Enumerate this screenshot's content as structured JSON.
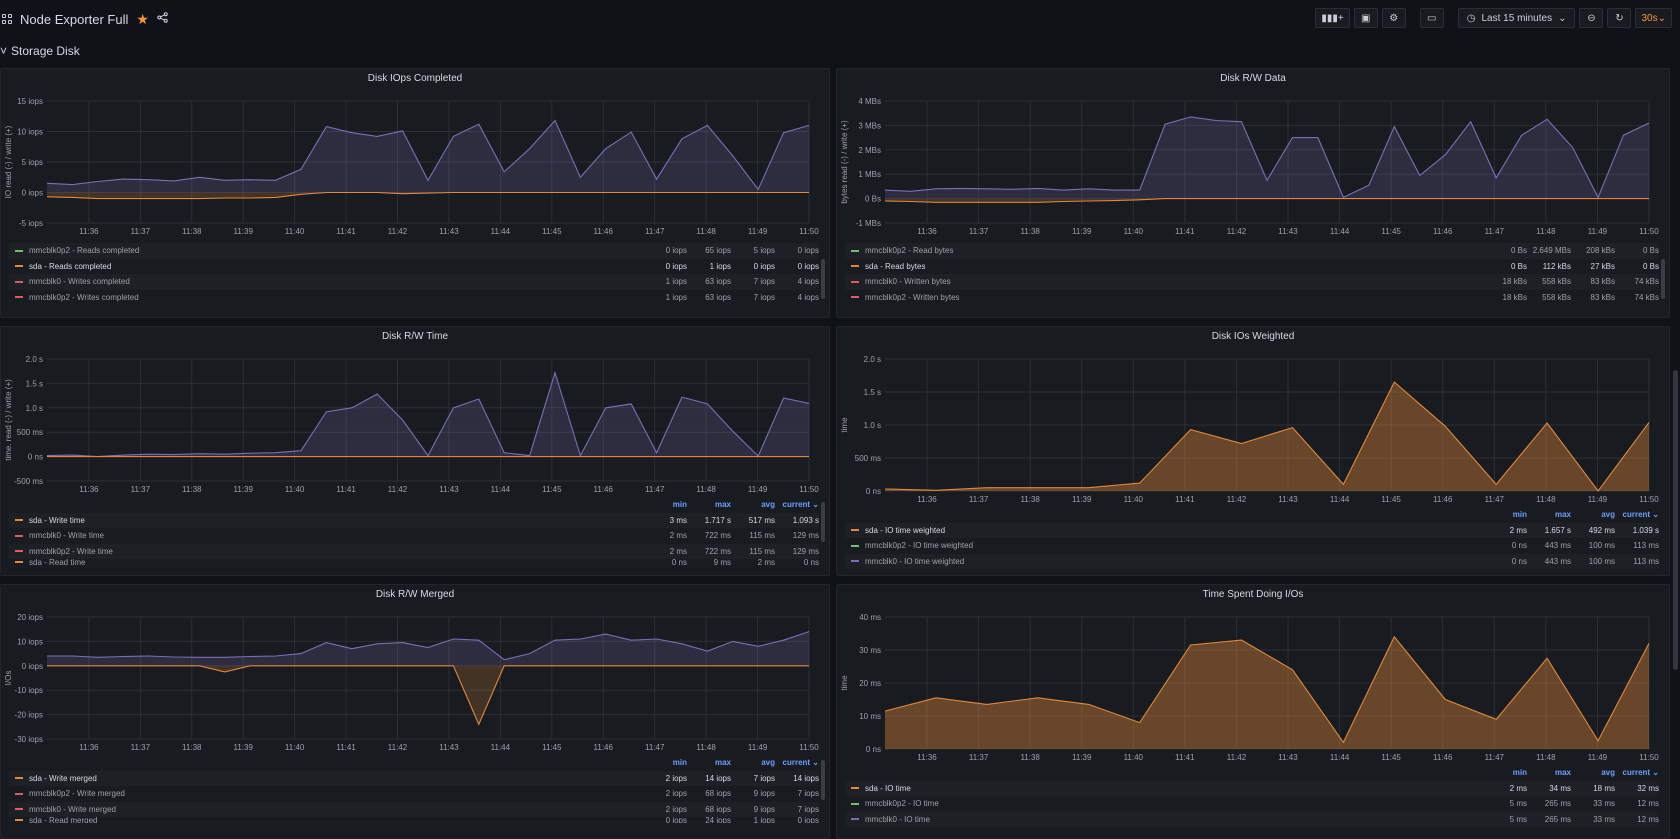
{
  "header": {
    "title": "Node Exporter Full",
    "time_range": "Last 15 minutes",
    "refresh_interval": "30s",
    "icons": [
      "apps-icon",
      "star-icon",
      "share-icon",
      "add-panel-icon",
      "save-icon",
      "settings-icon",
      "tv-mode-icon",
      "clock-icon",
      "zoom-out-icon",
      "refresh-icon"
    ]
  },
  "row": {
    "title": "Storage Disk"
  },
  "colors": {
    "purple": "#7b6fb3",
    "orange": "#e0883d",
    "red": "#e05b5b",
    "green": "#73bf69",
    "accent": "#6e9fff"
  },
  "chart_data": [
    {
      "id": "iops",
      "type": "area",
      "title": "Disk IOps Completed",
      "ylabel": "IO read (-) / write (+)",
      "yticks": [
        "15 iops",
        "10 iops",
        "5 iops",
        "0 iops",
        "-5 iops"
      ],
      "ylim": [
        -5,
        15
      ],
      "xticks": [
        "11:36",
        "11:37",
        "11:38",
        "11:39",
        "11:40",
        "11:41",
        "11:42",
        "11:43",
        "11:44",
        "11:45",
        "11:46",
        "11:47",
        "11:48",
        "11:49",
        "11:50"
      ],
      "series": [
        {
          "color": "purple",
          "values": [
            1.5,
            1.3,
            1.8,
            2.2,
            2.1,
            1.9,
            2.5,
            2.0,
            2.1,
            2.0,
            3.8,
            10.8,
            9.8,
            9.2,
            10.1,
            2.0,
            9.2,
            11.2,
            3.4,
            7.2,
            11.8,
            2.5,
            7.2,
            9.9,
            2.2,
            8.8,
            11.0,
            6.0,
            0.5,
            9.8,
            11.0
          ]
        },
        {
          "color": "orange",
          "values": [
            -0.7,
            -0.8,
            -1.0,
            -1.0,
            -1.0,
            -1.0,
            -1.0,
            -0.9,
            -0.9,
            -0.8,
            -0.3,
            0,
            0,
            0,
            -0.2,
            -0.1,
            0,
            0,
            0,
            0,
            0,
            0,
            0,
            0,
            0,
            0,
            0,
            0,
            0,
            0,
            0
          ]
        }
      ],
      "legend": {
        "headers": [],
        "rows": [
          {
            "name": "mmcblk0p2 - Reads completed",
            "color": "green",
            "values": [
              "0 iops",
              "65 iops",
              "5 iops",
              "0 iops"
            ]
          },
          {
            "name": "sda - Reads completed",
            "color": "orange",
            "values": [
              "0 iops",
              "1 iops",
              "0 iops",
              "0 iops"
            ],
            "hi": true
          },
          {
            "name": "mmcblk0 - Writes completed",
            "color": "red",
            "values": [
              "1 iops",
              "63 iops",
              "7 iops",
              "4 iops"
            ]
          },
          {
            "name": "mmcblk0p2 - Writes completed",
            "color": "red",
            "values": [
              "1 iops",
              "63 iops",
              "7 iops",
              "4 iops"
            ]
          }
        ]
      }
    },
    {
      "id": "rwdata",
      "type": "area",
      "title": "Disk R/W Data",
      "ylabel": "bytes read (-) / write (+)",
      "yticks": [
        "4 MBs",
        "3 MBs",
        "2 MBs",
        "1 MBs",
        "0 Bs",
        "-1 MBs"
      ],
      "ylim": [
        -1,
        4
      ],
      "xticks": [
        "11:36",
        "11:37",
        "11:38",
        "11:39",
        "11:40",
        "11:41",
        "11:42",
        "11:43",
        "11:44",
        "11:45",
        "11:46",
        "11:47",
        "11:48",
        "11:49",
        "11:50"
      ],
      "series": [
        {
          "color": "purple",
          "values": [
            0.35,
            0.3,
            0.4,
            0.42,
            0.4,
            0.38,
            0.42,
            0.35,
            0.4,
            0.35,
            0.35,
            3.05,
            3.35,
            3.2,
            3.15,
            0.75,
            2.5,
            2.5,
            0.05,
            0.55,
            2.95,
            0.95,
            1.8,
            3.15,
            0.85,
            2.6,
            3.25,
            2.1,
            0.05,
            2.6,
            3.1
          ]
        },
        {
          "color": "orange",
          "values": [
            -0.1,
            -0.12,
            -0.15,
            -0.15,
            -0.15,
            -0.15,
            -0.15,
            -0.12,
            -0.1,
            -0.08,
            -0.05,
            0,
            0,
            0,
            0,
            0,
            0,
            0,
            0,
            0,
            0,
            0,
            0,
            0,
            0,
            0,
            0,
            0,
            0,
            0,
            0
          ]
        }
      ],
      "legend": {
        "headers": [],
        "rows": [
          {
            "name": "mmcblk0p2 - Read bytes",
            "color": "green",
            "values": [
              "0 Bs",
              "2.649 MBs",
              "208 kBs",
              "0 Bs"
            ]
          },
          {
            "name": "sda - Read bytes",
            "color": "orange",
            "values": [
              "0 Bs",
              "112 kBs",
              "27 kBs",
              "0 Bs"
            ],
            "hi": true
          },
          {
            "name": "mmcblk0 - Written bytes",
            "color": "red",
            "values": [
              "18 kBs",
              "558 kBs",
              "83 kBs",
              "74 kBs"
            ]
          },
          {
            "name": "mmcblk0p2 - Written bytes",
            "color": "red",
            "values": [
              "18 kBs",
              "558 kBs",
              "83 kBs",
              "74 kBs"
            ]
          }
        ]
      }
    },
    {
      "id": "rwtime",
      "type": "area",
      "title": "Disk R/W Time",
      "ylabel": "time. read (-) / write (+)",
      "yticks": [
        "2.0 s",
        "1.5 s",
        "1.0 s",
        "500 ms",
        "0 ns",
        "-500 ms"
      ],
      "ylim": [
        -0.5,
        2.0
      ],
      "xticks": [
        "11:36",
        "11:37",
        "11:38",
        "11:39",
        "11:40",
        "11:41",
        "11:42",
        "11:43",
        "11:44",
        "11:45",
        "11:46",
        "11:47",
        "11:48",
        "11:49",
        "11:50"
      ],
      "series": [
        {
          "color": "purple",
          "values": [
            0.02,
            0.03,
            0.0,
            0.03,
            0.05,
            0.04,
            0.06,
            0.05,
            0.07,
            0.08,
            0.12,
            0.92,
            1.0,
            1.28,
            0.75,
            0.02,
            1.0,
            1.18,
            0.08,
            0.02,
            1.72,
            0.02,
            1.0,
            1.08,
            0.08,
            1.22,
            1.08,
            0.52,
            0.01,
            1.2,
            1.09
          ]
        },
        {
          "color": "orange",
          "values": [
            0,
            0,
            0,
            0,
            0,
            0,
            0,
            0,
            0,
            0,
            0,
            0,
            0,
            0,
            0,
            0,
            0,
            0,
            0,
            0,
            0,
            0,
            0,
            0,
            0,
            0,
            0,
            0,
            0,
            0,
            0
          ]
        }
      ],
      "legend": {
        "headers": [
          "min",
          "max",
          "avg",
          "current ⌄"
        ],
        "rows": [
          {
            "name": "sda - Write time",
            "color": "orange",
            "values": [
              "3 ms",
              "1.717 s",
              "517 ms",
              "1.093 s"
            ],
            "hi": true
          },
          {
            "name": "mmcblk0 - Write time",
            "color": "red",
            "values": [
              "2 ms",
              "722 ms",
              "115 ms",
              "129 ms"
            ]
          },
          {
            "name": "mmcblk0p2 - Write time",
            "color": "red",
            "values": [
              "2 ms",
              "722 ms",
              "115 ms",
              "129 ms"
            ]
          },
          {
            "name": "sda - Read time",
            "color": "orange",
            "values": [
              "0 ns",
              "9 ms",
              "2 ms",
              "0 ns"
            ],
            "cut": true
          }
        ]
      }
    },
    {
      "id": "weighted",
      "type": "area",
      "title": "Disk IOs Weighted",
      "ylabel": "time",
      "yticks": [
        "2.0 s",
        "1.5 s",
        "1.0 s",
        "500 ms",
        "0 ns"
      ],
      "ylim": [
        0,
        2.0
      ],
      "xticks": [
        "11:36",
        "11:37",
        "11:38",
        "11:39",
        "11:40",
        "11:41",
        "11:42",
        "11:43",
        "11:44",
        "11:45",
        "11:46",
        "11:47",
        "11:48",
        "11:49",
        "11:50"
      ],
      "series": [
        {
          "color": "orange",
          "values": [
            0.03,
            0.01,
            0.05,
            0.05,
            0.05,
            0.12,
            0.93,
            0.72,
            0.96,
            0.1,
            1.65,
            0.98,
            0.1,
            1.03,
            0.0,
            1.04
          ]
        }
      ],
      "legend": {
        "headers": [
          "min",
          "max",
          "avg",
          "current ⌄"
        ],
        "rows": [
          {
            "name": "sda - IO time weighted",
            "color": "orange",
            "values": [
              "2 ms",
              "1.657 s",
              "492 ms",
              "1.039 s"
            ],
            "hi": true
          },
          {
            "name": "mmcblk0p2 - IO time weighted",
            "color": "green",
            "values": [
              "0 ns",
              "443 ms",
              "100 ms",
              "113 ms"
            ]
          },
          {
            "name": "mmcblk0 - IO time weighted",
            "color": "purple",
            "values": [
              "0 ns",
              "443 ms",
              "100 ms",
              "113 ms"
            ]
          }
        ]
      }
    },
    {
      "id": "merged",
      "type": "area",
      "title": "Disk R/W Merged",
      "ylabel": "I/Os",
      "yticks": [
        "20 iops",
        "10 iops",
        "0 iops",
        "-10 iops",
        "-20 iops",
        "-30 iops"
      ],
      "ylim": [
        -30,
        20
      ],
      "xticks": [
        "11:36",
        "11:37",
        "11:38",
        "11:39",
        "11:40",
        "11:41",
        "11:42",
        "11:43",
        "11:44",
        "11:45",
        "11:46",
        "11:47",
        "11:48",
        "11:49",
        "11:50"
      ],
      "series": [
        {
          "color": "purple",
          "values": [
            4,
            4,
            3.5,
            3.8,
            4,
            3.6,
            3.5,
            3.5,
            3.8,
            4,
            5,
            9.5,
            7,
            9,
            9.5,
            7.5,
            11,
            10.5,
            2.5,
            5,
            10.5,
            11,
            13,
            10.5,
            11,
            9,
            6,
            10,
            8,
            10.5,
            14
          ]
        },
        {
          "color": "orange",
          "values": [
            0,
            0,
            0,
            0,
            0,
            0,
            0,
            -2.5,
            0,
            0,
            0,
            0,
            0,
            0,
            0,
            0,
            0,
            -24,
            0,
            0,
            0,
            0,
            0,
            0,
            0,
            0,
            0,
            0,
            0,
            0,
            0
          ]
        }
      ],
      "legend": {
        "headers": [
          "min",
          "max",
          "avg",
          "current ⌄"
        ],
        "rows": [
          {
            "name": "sda - Write merged",
            "color": "orange",
            "values": [
              "2 iops",
              "14 iops",
              "7 iops",
              "14 iops"
            ],
            "hi": true
          },
          {
            "name": "mmcblk0p2 - Write merged",
            "color": "red",
            "values": [
              "2 iops",
              "68 iops",
              "9 iops",
              "7 iops"
            ]
          },
          {
            "name": "mmcblk0 - Write merged",
            "color": "red",
            "values": [
              "2 iops",
              "68 iops",
              "9 iops",
              "7 iops"
            ]
          },
          {
            "name": "sda - Read merged",
            "color": "orange",
            "values": [
              "0 iops",
              "24 iops",
              "1 iops",
              "0 iops"
            ],
            "cut": true
          }
        ]
      }
    },
    {
      "id": "timeio",
      "type": "area",
      "title": "Time Spent Doing I/Os",
      "ylabel": "time",
      "yticks": [
        "40 ms",
        "30 ms",
        "20 ms",
        "10 ms",
        "0 ns"
      ],
      "ylim": [
        0,
        40
      ],
      "xticks": [
        "11:36",
        "11:37",
        "11:38",
        "11:39",
        "11:40",
        "11:41",
        "11:42",
        "11:43",
        "11:44",
        "11:45",
        "11:46",
        "11:47",
        "11:48",
        "11:49",
        "11:50"
      ],
      "series": [
        {
          "color": "orange",
          "values": [
            11.5,
            15.5,
            13.5,
            15.5,
            13.5,
            8,
            31.5,
            33,
            24,
            2,
            34,
            15,
            9,
            27.5,
            2.5,
            32
          ]
        }
      ],
      "legend": {
        "headers": [
          "min",
          "max",
          "avg",
          "current ⌄"
        ],
        "rows": [
          {
            "name": "sda - IO time",
            "color": "orange",
            "values": [
              "2 ms",
              "34 ms",
              "18 ms",
              "32 ms"
            ],
            "hi": true
          },
          {
            "name": "mmcblk0p2 - IO time",
            "color": "green",
            "values": [
              "5 ms",
              "265 ms",
              "33 ms",
              "12 ms"
            ]
          },
          {
            "name": "mmcblk0 - IO time",
            "color": "purple",
            "values": [
              "5 ms",
              "265 ms",
              "33 ms",
              "12 ms"
            ]
          }
        ]
      }
    }
  ]
}
